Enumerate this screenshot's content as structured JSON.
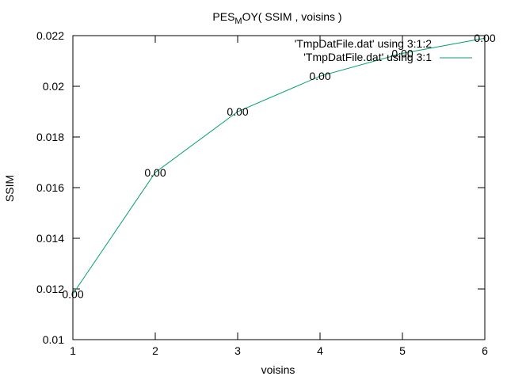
{
  "chart_data": {
    "type": "line",
    "title_parts": {
      "before": "PES",
      "subscript": "M",
      "after": "OY( SSIM , voisins )"
    },
    "xlabel": "voisins",
    "ylabel": "SSIM",
    "xlim": [
      1,
      6
    ],
    "ylim": [
      0.01,
      0.022
    ],
    "xticks": [
      "1",
      "2",
      "3",
      "4",
      "5",
      "6"
    ],
    "yticks": [
      "0.01",
      "0.012",
      "0.014",
      "0.016",
      "0.018",
      "0.02",
      "0.022"
    ],
    "grid": false,
    "legend_position": "top-right",
    "series": [
      {
        "name": "'TmpDatFile.dat' using 3:1",
        "color": "#009e73",
        "x": [
          1,
          2,
          3,
          4,
          5,
          6
        ],
        "values": [
          0.0118,
          0.0166,
          0.019,
          0.0204,
          0.0213,
          0.0219
        ]
      }
    ],
    "label_series": {
      "name": "'TmpDatFile.dat' using 3:1:2",
      "labels": [
        "0.00",
        "0.00",
        "0.00",
        "0.00",
        "0.00",
        "0.00"
      ]
    }
  }
}
